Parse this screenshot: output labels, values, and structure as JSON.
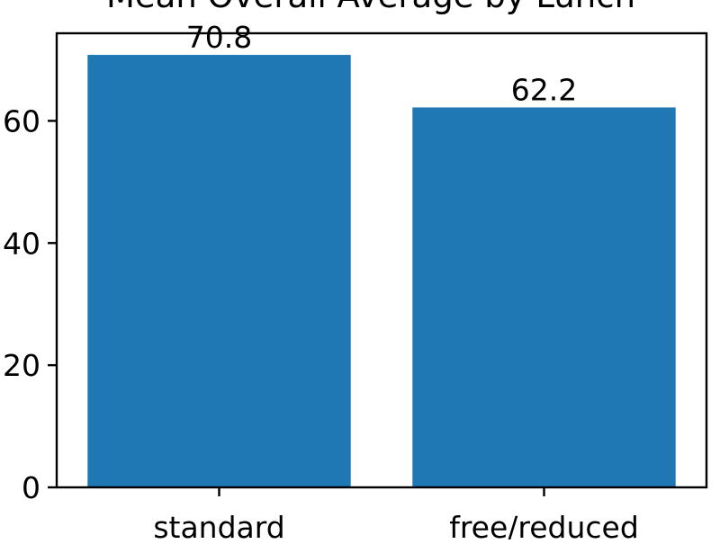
{
  "chart_data": {
    "type": "bar",
    "title": "Mean Overall Average by Lunch",
    "xlabel": "",
    "ylabel": "",
    "categories": [
      "standard",
      "free/reduced"
    ],
    "values": [
      70.8,
      62.2
    ],
    "value_labels": [
      "70.8",
      "62.2"
    ],
    "ylim": [
      0,
      74.34
    ],
    "yticks": [
      0,
      20,
      40,
      60
    ],
    "ytick_labels": [
      "0",
      "20",
      "40",
      "60"
    ],
    "bar_color": "#1f77b4",
    "grid": false,
    "legend": "none"
  }
}
